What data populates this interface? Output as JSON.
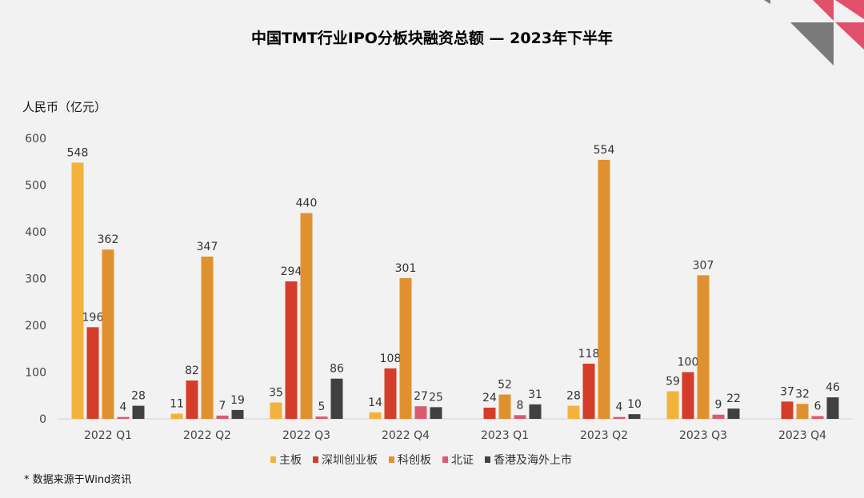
{
  "chart_data": {
    "type": "bar",
    "title": "中国TMT行业IPO分板块融资总额 — 2023年下半年",
    "ylabel": "人民币（亿元）",
    "xlabel": "",
    "ylim": [
      0,
      600
    ],
    "yticks": [
      0,
      100,
      200,
      300,
      400,
      500,
      600
    ],
    "grid": false,
    "legend_position": "bottom",
    "categories": [
      "2022 Q1",
      "2022 Q2",
      "2022 Q3",
      "2022 Q4",
      "2023 Q1",
      "2023 Q2",
      "2023 Q3",
      "2023 Q4"
    ],
    "series": [
      {
        "name": "主板",
        "color": "#f2b33d",
        "values": [
          548,
          11,
          35,
          14,
          null,
          28,
          59,
          null
        ]
      },
      {
        "name": "深圳创业板",
        "color": "#d43d2a",
        "values": [
          196,
          82,
          294,
          108,
          24,
          118,
          100,
          37
        ]
      },
      {
        "name": "科创板",
        "color": "#e0912f",
        "values": [
          362,
          347,
          440,
          301,
          52,
          554,
          307,
          32
        ]
      },
      {
        "name": "北证",
        "color": "#d95b72",
        "values": [
          4,
          7,
          5,
          27,
          8,
          4,
          9,
          6
        ]
      },
      {
        "name": "香港及海外上市",
        "color": "#404040",
        "values": [
          28,
          19,
          86,
          25,
          31,
          10,
          22,
          46
        ]
      }
    ],
    "footnote": "* 数据来源于Wind资讯"
  },
  "decoration": {
    "accent": "#e0506a",
    "gray": "#7a7a7a"
  }
}
